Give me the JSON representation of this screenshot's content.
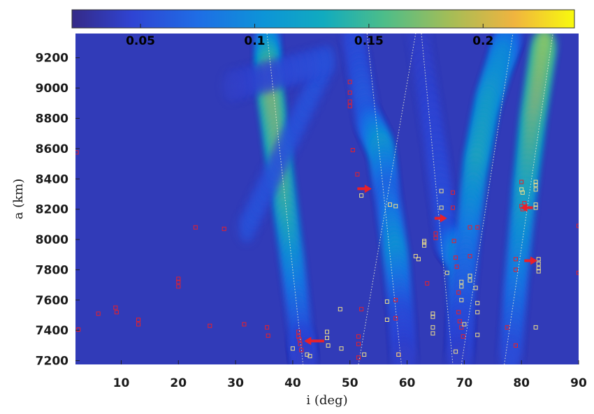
{
  "chart_data": {
    "type": "heatmap",
    "title": "",
    "xlabel": "i (deg)",
    "ylabel": "a (km)",
    "xlim": [
      2,
      90
    ],
    "ylim": [
      7175,
      9360
    ],
    "x_ticks": [
      10,
      20,
      30,
      40,
      50,
      60,
      70,
      80,
      90
    ],
    "y_ticks": [
      7200,
      7400,
      7600,
      7800,
      8000,
      8200,
      8400,
      8600,
      8800,
      9000,
      9200
    ],
    "colorbar": {
      "range": [
        0.02,
        0.24
      ],
      "ticks": [
        0.05,
        0.1,
        0.15,
        0.2
      ],
      "tick_labels": [
        "0.05",
        "0.1",
        "0.15",
        "0.2"
      ],
      "colormap": "parula"
    },
    "background_value": 0.025,
    "bands": [
      {
        "name": "band-1",
        "points": [
          [
            35.5,
            9360,
            0.09
          ],
          [
            35.8,
            9050,
            0.22
          ],
          [
            37.5,
            8550,
            0.2
          ],
          [
            39.8,
            7900,
            0.13
          ],
          [
            41.5,
            7350,
            0.06
          ],
          [
            42.0,
            7175,
            0.04
          ]
        ]
      },
      {
        "name": "band-2",
        "points": [
          [
            50.5,
            9360,
            0.05
          ],
          [
            53.0,
            8800,
            0.07
          ],
          [
            55.5,
            8600,
            0.14
          ],
          [
            56.5,
            8300,
            0.08
          ],
          [
            58.0,
            7900,
            0.13
          ],
          [
            59.0,
            7500,
            0.06
          ],
          [
            59.5,
            7175,
            0.04
          ]
        ]
      },
      {
        "name": "band-3",
        "points": [
          [
            62.0,
            9360,
            0.04
          ],
          [
            65.0,
            8600,
            0.05
          ],
          [
            67.0,
            8000,
            0.06
          ],
          [
            69.0,
            7900,
            0.12
          ],
          [
            69.5,
            7175,
            0.04
          ]
        ]
      },
      {
        "name": "band-4",
        "points": [
          [
            78.0,
            9360,
            0.07
          ],
          [
            76.5,
            9200,
            0.12
          ],
          [
            74.0,
            8900,
            0.14
          ],
          [
            72.0,
            8500,
            0.15
          ],
          [
            70.5,
            8000,
            0.1
          ],
          [
            69.5,
            7500,
            0.06
          ],
          [
            69.0,
            7175,
            0.04
          ]
        ]
      },
      {
        "name": "band-5",
        "points": [
          [
            84.0,
            9300,
            0.23
          ],
          [
            82.0,
            8800,
            0.21
          ],
          [
            80.5,
            8300,
            0.15
          ],
          [
            79.0,
            7700,
            0.1
          ],
          [
            78.0,
            7175,
            0.05
          ]
        ]
      },
      {
        "name": "band-6",
        "points": [
          [
            32.0,
            8080,
            0.06
          ],
          [
            46.0,
            9180,
            0.06
          ],
          [
            28.0,
            9000,
            0.04
          ]
        ]
      }
    ],
    "guide_lines": [
      {
        "x1": 35.5,
        "y1": 9360,
        "x2": 41.8,
        "y2": 7175
      },
      {
        "x1": 51.5,
        "y1": 7175,
        "x2": 61.5,
        "y2": 9360
      },
      {
        "x1": 53.0,
        "y1": 9360,
        "x2": 59.0,
        "y2": 7175
      },
      {
        "x1": 62.5,
        "y1": 9360,
        "x2": 68.0,
        "y2": 7175
      },
      {
        "x1": 69.5,
        "y1": 7175,
        "x2": 78.5,
        "y2": 9360
      },
      {
        "x1": 77.0,
        "y1": 7175,
        "x2": 85.5,
        "y2": 9360
      }
    ],
    "red_markers": [
      [
        2.2,
        8575
      ],
      [
        2.5,
        7405
      ],
      [
        6,
        7510
      ],
      [
        9,
        7550
      ],
      [
        9.2,
        7520
      ],
      [
        13,
        7470
      ],
      [
        13,
        7440
      ],
      [
        20,
        7740
      ],
      [
        20,
        7720
      ],
      [
        20,
        7690
      ],
      [
        23,
        8080
      ],
      [
        25.5,
        7430
      ],
      [
        28,
        8070
      ],
      [
        31.5,
        7440
      ],
      [
        35.5,
        7420
      ],
      [
        35.7,
        7365
      ],
      [
        41,
        7390
      ],
      [
        41,
        7360
      ],
      [
        41.2,
        7340
      ],
      [
        41.3,
        7310
      ],
      [
        41.5,
        7270
      ],
      [
        50,
        9040
      ],
      [
        50,
        8970
      ],
      [
        50,
        8910
      ],
      [
        50,
        8880
      ],
      [
        50.5,
        8590
      ],
      [
        51.3,
        8430
      ],
      [
        51.5,
        7360
      ],
      [
        51.5,
        7310
      ],
      [
        51.5,
        7220
      ],
      [
        52,
        7540
      ],
      [
        57,
        8230
      ],
      [
        58,
        7600
      ],
      [
        58,
        7480
      ],
      [
        58.5,
        7240
      ],
      [
        63.5,
        7710
      ],
      [
        65,
        8040
      ],
      [
        65,
        8010
      ],
      [
        68,
        8310
      ],
      [
        68,
        8210
      ],
      [
        68.2,
        7990
      ],
      [
        68.5,
        7880
      ],
      [
        68.7,
        7820
      ],
      [
        69,
        7650
      ],
      [
        69,
        7520
      ],
      [
        69.2,
        7460
      ],
      [
        69.5,
        7420
      ],
      [
        69.8,
        7360
      ],
      [
        71,
        8080
      ],
      [
        72.3,
        8080
      ],
      [
        71,
        7890
      ],
      [
        77.5,
        7420
      ],
      [
        79,
        7870
      ],
      [
        79,
        7800
      ],
      [
        79,
        7300
      ],
      [
        80,
        8380
      ],
      [
        80,
        8220
      ],
      [
        80.2,
        8200
      ],
      [
        80.5,
        8240
      ],
      [
        90,
        8090
      ],
      [
        90,
        7780
      ]
    ],
    "yellow_markers": [
      [
        40,
        7280
      ],
      [
        42.5,
        7240
      ],
      [
        43,
        7230
      ],
      [
        46,
        7390
      ],
      [
        46,
        7350
      ],
      [
        46.2,
        7300
      ],
      [
        48.3,
        7540
      ],
      [
        48.5,
        7280
      ],
      [
        52,
        8290
      ],
      [
        52.5,
        7240
      ],
      [
        56.5,
        7590
      ],
      [
        56.5,
        7470
      ],
      [
        57,
        8230
      ],
      [
        58,
        8220
      ],
      [
        58.5,
        7240
      ],
      [
        61.5,
        7890
      ],
      [
        62,
        7870
      ],
      [
        63,
        7990
      ],
      [
        63,
        7980
      ],
      [
        63,
        7960
      ],
      [
        64.5,
        7510
      ],
      [
        64.5,
        7490
      ],
      [
        64.5,
        7420
      ],
      [
        64.5,
        7380
      ],
      [
        66,
        8210
      ],
      [
        66,
        8320
      ],
      [
        67,
        7780
      ],
      [
        68.5,
        7260
      ],
      [
        69.5,
        7720
      ],
      [
        69.5,
        7690
      ],
      [
        69.5,
        7600
      ],
      [
        70,
        7440
      ],
      [
        71,
        7760
      ],
      [
        71,
        7730
      ],
      [
        72,
        7680
      ],
      [
        72.3,
        7580
      ],
      [
        72.3,
        7520
      ],
      [
        72.3,
        7370
      ],
      [
        80,
        8330
      ],
      [
        80.2,
        8310
      ],
      [
        82.5,
        8380
      ],
      [
        82.5,
        8360
      ],
      [
        82.5,
        8330
      ],
      [
        82.5,
        8230
      ],
      [
        82.5,
        8210
      ],
      [
        82.5,
        7420
      ],
      [
        83,
        7870
      ],
      [
        83,
        7840
      ],
      [
        83,
        7810
      ],
      [
        83,
        7790
      ]
    ],
    "arrows": [
      {
        "tail": [
          45.5,
          7330
        ],
        "head": [
          42.0,
          7330
        ]
      },
      {
        "tail": [
          51.3,
          8335
        ],
        "head": [
          53.8,
          8335
        ]
      },
      {
        "tail": [
          64.8,
          8140
        ],
        "head": [
          67.0,
          8140
        ]
      },
      {
        "tail": [
          82.0,
          8210
        ],
        "head": [
          79.8,
          8210
        ]
      },
      {
        "tail": [
          80.5,
          7860
        ],
        "head": [
          82.8,
          7860
        ]
      }
    ]
  }
}
